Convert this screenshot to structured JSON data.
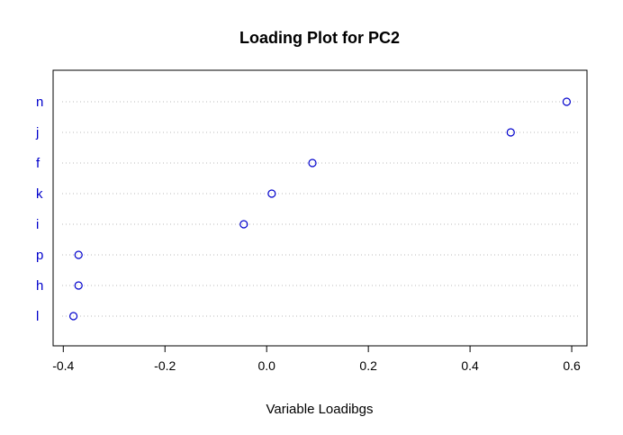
{
  "chart_data": {
    "type": "scatter",
    "title": "Loading Plot for PC2",
    "xlabel": "Variable Loadibgs",
    "ylabel": "",
    "xlim": [
      -0.42,
      0.63
    ],
    "xticks": [
      -0.4,
      -0.2,
      0.0,
      0.2,
      0.4,
      0.6
    ],
    "xtick_labels": [
      "-0.4",
      "-0.2",
      "0.0",
      "0.2",
      "0.4",
      "0.6"
    ],
    "categories": [
      "n",
      "j",
      "f",
      "k",
      "i",
      "p",
      "h",
      "l"
    ],
    "values": [
      0.59,
      0.48,
      0.09,
      0.01,
      -0.045,
      -0.37,
      -0.37,
      -0.38
    ],
    "grid": "dotted horizontal",
    "point_color": "#0000cc",
    "label_color": "#0000cc",
    "grid_color": "#bbbbbb"
  }
}
